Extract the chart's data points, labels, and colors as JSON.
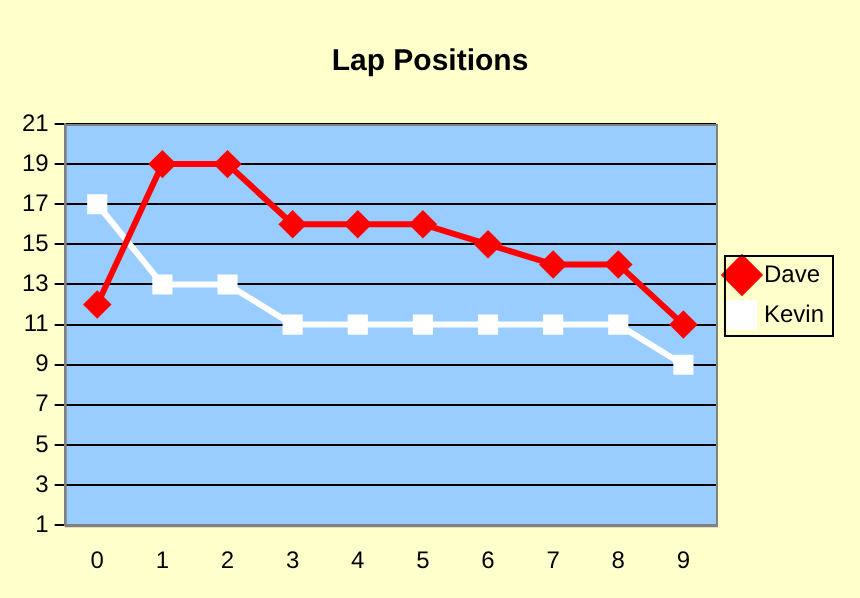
{
  "chart_data": {
    "type": "line",
    "title": "Lap Positions",
    "categories": [
      "0",
      "1",
      "2",
      "3",
      "4",
      "5",
      "6",
      "7",
      "8",
      "9"
    ],
    "series": [
      {
        "name": "Dave",
        "color": "#ff0000",
        "marker": "diamond",
        "values": [
          12,
          19,
          19,
          16,
          16,
          16,
          15,
          14,
          14,
          11
        ]
      },
      {
        "name": "Kevin",
        "color": "#ffffff",
        "marker": "square",
        "values": [
          17,
          13,
          13,
          11,
          11,
          11,
          11,
          11,
          11,
          9
        ]
      }
    ],
    "ylim": [
      1,
      21
    ],
    "yticks": [
      1,
      3,
      5,
      7,
      9,
      11,
      13,
      15,
      17,
      19,
      21
    ],
    "grid": "y",
    "legend": "right",
    "line_style": "solid"
  }
}
